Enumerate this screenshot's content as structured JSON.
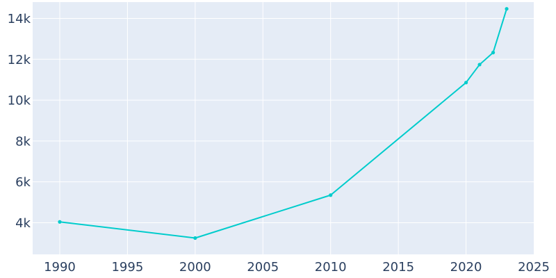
{
  "chart_data": {
    "type": "line",
    "title": "",
    "xlabel": "",
    "ylabel": "",
    "xlim": [
      1988,
      2025
    ],
    "ylim": [
      2450,
      14800
    ],
    "x_ticks": [
      1990,
      1995,
      2000,
      2005,
      2010,
      2015,
      2020,
      2025
    ],
    "x_tick_labels": [
      "1990",
      "1995",
      "2000",
      "2005",
      "2010",
      "2015",
      "2020",
      "2025"
    ],
    "y_ticks": [
      4000,
      6000,
      8000,
      10000,
      12000,
      14000
    ],
    "y_tick_labels": [
      "4k",
      "6k",
      "8k",
      "10k",
      "12k",
      "14k"
    ],
    "grid": true,
    "legend": "none",
    "colors": {
      "plot_background": "#e5ecf6",
      "grid": "#ffffff",
      "line": "#00cccc",
      "text": "#2a3f5f"
    },
    "series": [
      {
        "x": [
          1990,
          2000,
          2010,
          2020,
          2021,
          2022,
          2023
        ],
        "y": [
          4040,
          3250,
          5350,
          10860,
          11740,
          12330,
          14470
        ]
      }
    ]
  }
}
